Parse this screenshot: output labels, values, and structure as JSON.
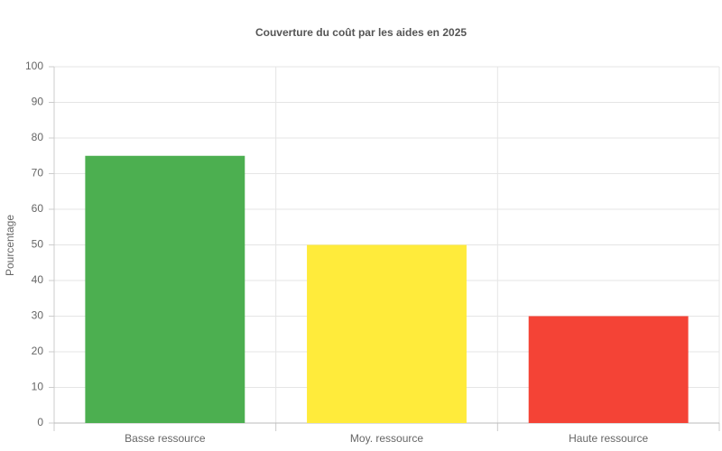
{
  "chart_data": {
    "type": "bar",
    "title": "Couverture du coût par les aides en 2025",
    "y_label": "Pourcentage",
    "categories": [
      "Basse ressource",
      "Moy. ressource",
      "Haute ressource"
    ],
    "values": [
      75,
      50,
      30
    ],
    "colors": [
      "#4caf50",
      "#ffeb3b",
      "#f44336"
    ],
    "ylim": [
      0,
      100
    ],
    "yticks": [
      0,
      10,
      20,
      30,
      40,
      50,
      60,
      70,
      80,
      90,
      100
    ],
    "grid": true
  }
}
